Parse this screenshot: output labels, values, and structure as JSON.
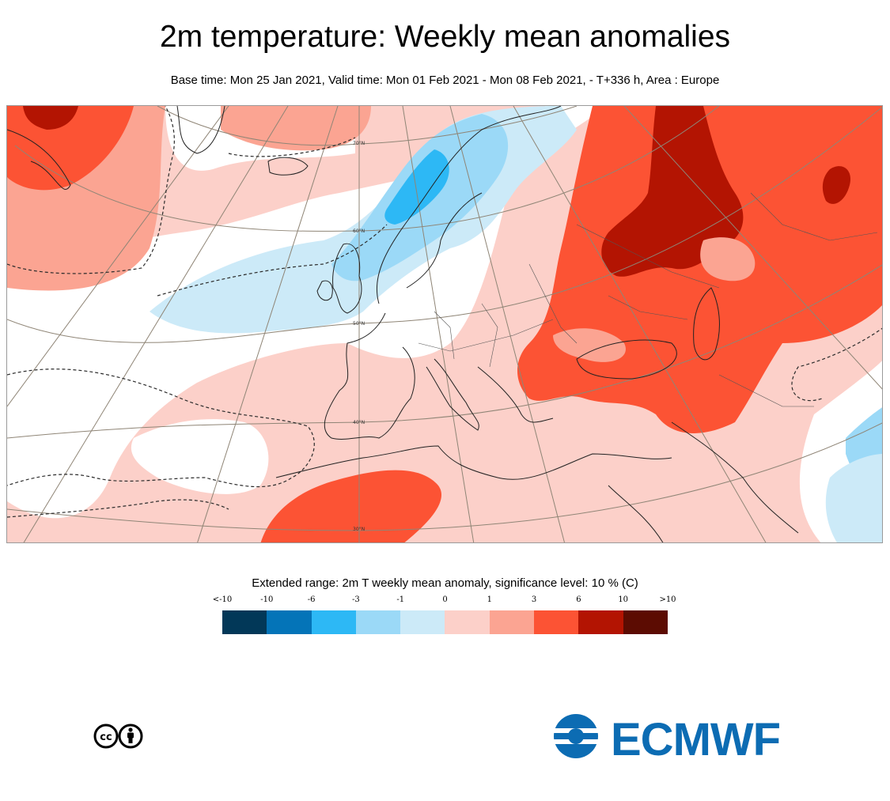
{
  "title": "2m temperature: Weekly mean anomalies",
  "subtitle": "Base time: Mon 25 Jan 2021, Valid time: Mon 01 Feb 2021 - Mon 08 Feb 2021, - T+336 h, Area : Europe",
  "map": {
    "area": "Europe",
    "latitude_labels": [
      "70°N",
      "60°N",
      "50°N",
      "40°N",
      "30°N"
    ]
  },
  "legend": {
    "title": "Extended range: 2m T weekly mean anomaly, significance level: 10 % (C)",
    "ticks": [
      "<-10",
      "-10",
      "-6",
      "-3",
      "-1",
      "0",
      "1",
      "3",
      "6",
      "10",
      ">10"
    ],
    "colors": [
      "#023858",
      "#0474b8",
      "#2db8f5",
      "#9bd9f7",
      "#cceaf8",
      "#fcd0c9",
      "#fba492",
      "#fc5334",
      "#b31402",
      "#5c0c02"
    ]
  },
  "logos": {
    "license_icon": "cc-by-icon",
    "organisation": "ECMWF"
  }
}
